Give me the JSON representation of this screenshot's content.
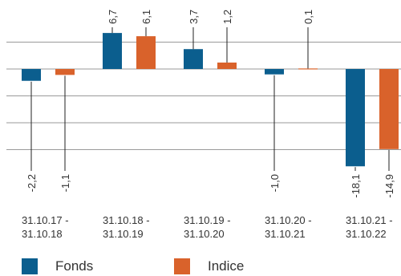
{
  "chart_data": {
    "type": "bar",
    "categories": [
      [
        "31.10.17 -",
        "31.10.18"
      ],
      [
        "31.10.18 -",
        "31.10.19"
      ],
      [
        "31.10.19 -",
        "31.10.20"
      ],
      [
        "31.10.20 -",
        "31.10.21"
      ],
      [
        "31.10.21 -",
        "31.10.22"
      ]
    ],
    "series": [
      {
        "name": "Fonds",
        "color": "#0b5e8e",
        "values": [
          -2.2,
          6.7,
          3.7,
          -1.0,
          -18.1
        ],
        "labels": [
          "-2,2",
          "6,7",
          "3,7",
          "-1,0",
          "-18,1"
        ]
      },
      {
        "name": "Indice",
        "color": "#d9622b",
        "values": [
          -1.1,
          6.1,
          1.2,
          0.1,
          -14.9
        ],
        "labels": [
          "-1,1",
          "6,1",
          "1,2",
          "0,1",
          "-14,9"
        ]
      }
    ],
    "ylim": [
      -20,
      10
    ],
    "grid": true,
    "legend_position": "bottom-left"
  },
  "legend": {
    "fonds": "Fonds",
    "indice": "Indice",
    "fonds_color": "#0b5e8e",
    "indice_color": "#d9622b"
  }
}
